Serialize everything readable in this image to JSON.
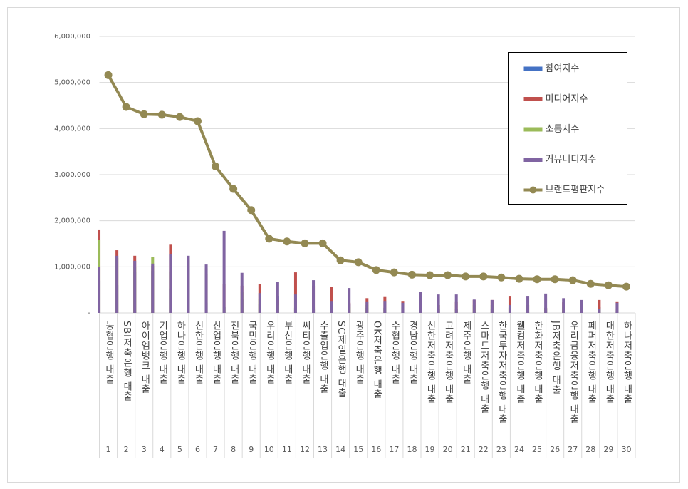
{
  "chart_data": {
    "type": "bar",
    "categories": [
      "농협은행 대출",
      "SBI저축은행 대출",
      "아이엠뱅크 대출",
      "기업은행 대출",
      "하나은행 대출",
      "신한은행 대출",
      "산업은행 대출",
      "전북은행 대출",
      "국민은행 대출",
      "우리은행 대출",
      "부산은행 대출",
      "씨티은행 대출",
      "수출입은행 대출",
      "SC제일은행 대출",
      "광주은행 대출",
      "OK저축은행 대출",
      "수협은행 대출",
      "경남은행 대출",
      "신한저축은행 대출",
      "고려저축은행 대출",
      "제주은행 대출",
      "스마트저축은행 대출",
      "한국투자저축은행 대출",
      "웰컴저축은행 대출",
      "한화저축은행 대출",
      "JB저축은행 대출",
      "우리금융저축은행 대출",
      "페퍼저축은행 대출",
      "대한저축은행 대출",
      "하나저축은행 대출"
    ],
    "ranks": [
      1,
      2,
      3,
      4,
      5,
      6,
      7,
      8,
      9,
      10,
      11,
      12,
      13,
      14,
      15,
      16,
      17,
      18,
      19,
      20,
      21,
      22,
      23,
      24,
      25,
      26,
      27,
      28,
      29,
      30
    ],
    "series": [
      {
        "name": "참여지수",
        "color": "#4472c4",
        "values": [
          700000,
          600000,
          880000,
          910000,
          530000,
          700000,
          220000,
          140000,
          290000,
          190000,
          370000,
          110000,
          80000,
          150000,
          200000,
          110000,
          110000,
          220000,
          80000,
          90000,
          80000,
          30000,
          90000,
          110000,
          20000,
          90000,
          60000,
          80000,
          140000,
          50000
        ]
      },
      {
        "name": "미디어지수",
        "color": "#c0504d",
        "values": [
          1810000,
          1360000,
          1240000,
          1020000,
          1480000,
          1020000,
          850000,
          620000,
          590000,
          630000,
          280000,
          880000,
          590000,
          560000,
          220000,
          320000,
          360000,
          260000,
          220000,
          170000,
          250000,
          280000,
          280000,
          370000,
          170000,
          110000,
          230000,
          150000,
          280000,
          250000
        ]
      },
      {
        "name": "소통지수",
        "color": "#9bbb59",
        "values": [
          1580000,
          1190000,
          990000,
          1220000,
          900000,
          1140000,
          970000,
          120000,
          460000,
          290000,
          170000,
          110000,
          120000,
          110000,
          120000,
          170000,
          110000,
          140000,
          50000,
          170000,
          60000,
          170000,
          170000,
          120000,
          170000,
          110000,
          140000,
          120000,
          80000,
          80000
        ]
      },
      {
        "name": "커뮤니티지수",
        "color": "#8064a2",
        "values": [
          1000000,
          1240000,
          1130000,
          1070000,
          1280000,
          1240000,
          1050000,
          1780000,
          870000,
          430000,
          680000,
          400000,
          710000,
          260000,
          540000,
          250000,
          260000,
          220000,
          460000,
          400000,
          400000,
          290000,
          280000,
          170000,
          370000,
          420000,
          320000,
          280000,
          90000,
          220000
        ]
      },
      {
        "name": "브랜드평판지수",
        "color": "#938953",
        "type": "line",
        "values": [
          5160000,
          4470000,
          4310000,
          4300000,
          4250000,
          4160000,
          3180000,
          2690000,
          2230000,
          1610000,
          1550000,
          1510000,
          1510000,
          1140000,
          1100000,
          930000,
          880000,
          830000,
          820000,
          820000,
          790000,
          790000,
          770000,
          740000,
          730000,
          730000,
          710000,
          630000,
          600000,
          570000
        ]
      }
    ],
    "ylim": [
      0,
      6000000
    ],
    "yticks": [
      {
        "value": 0,
        "label": "-"
      },
      {
        "value": 1000000,
        "label": "1,000,000"
      },
      {
        "value": 2000000,
        "label": "2,000,000"
      },
      {
        "value": 3000000,
        "label": "3,000,000"
      },
      {
        "value": 4000000,
        "label": "4,000,000"
      },
      {
        "value": 5000000,
        "label": "5,000,000"
      },
      {
        "value": 6000000,
        "label": "6,000,000"
      }
    ],
    "grid": true,
    "legend": "upper right"
  }
}
